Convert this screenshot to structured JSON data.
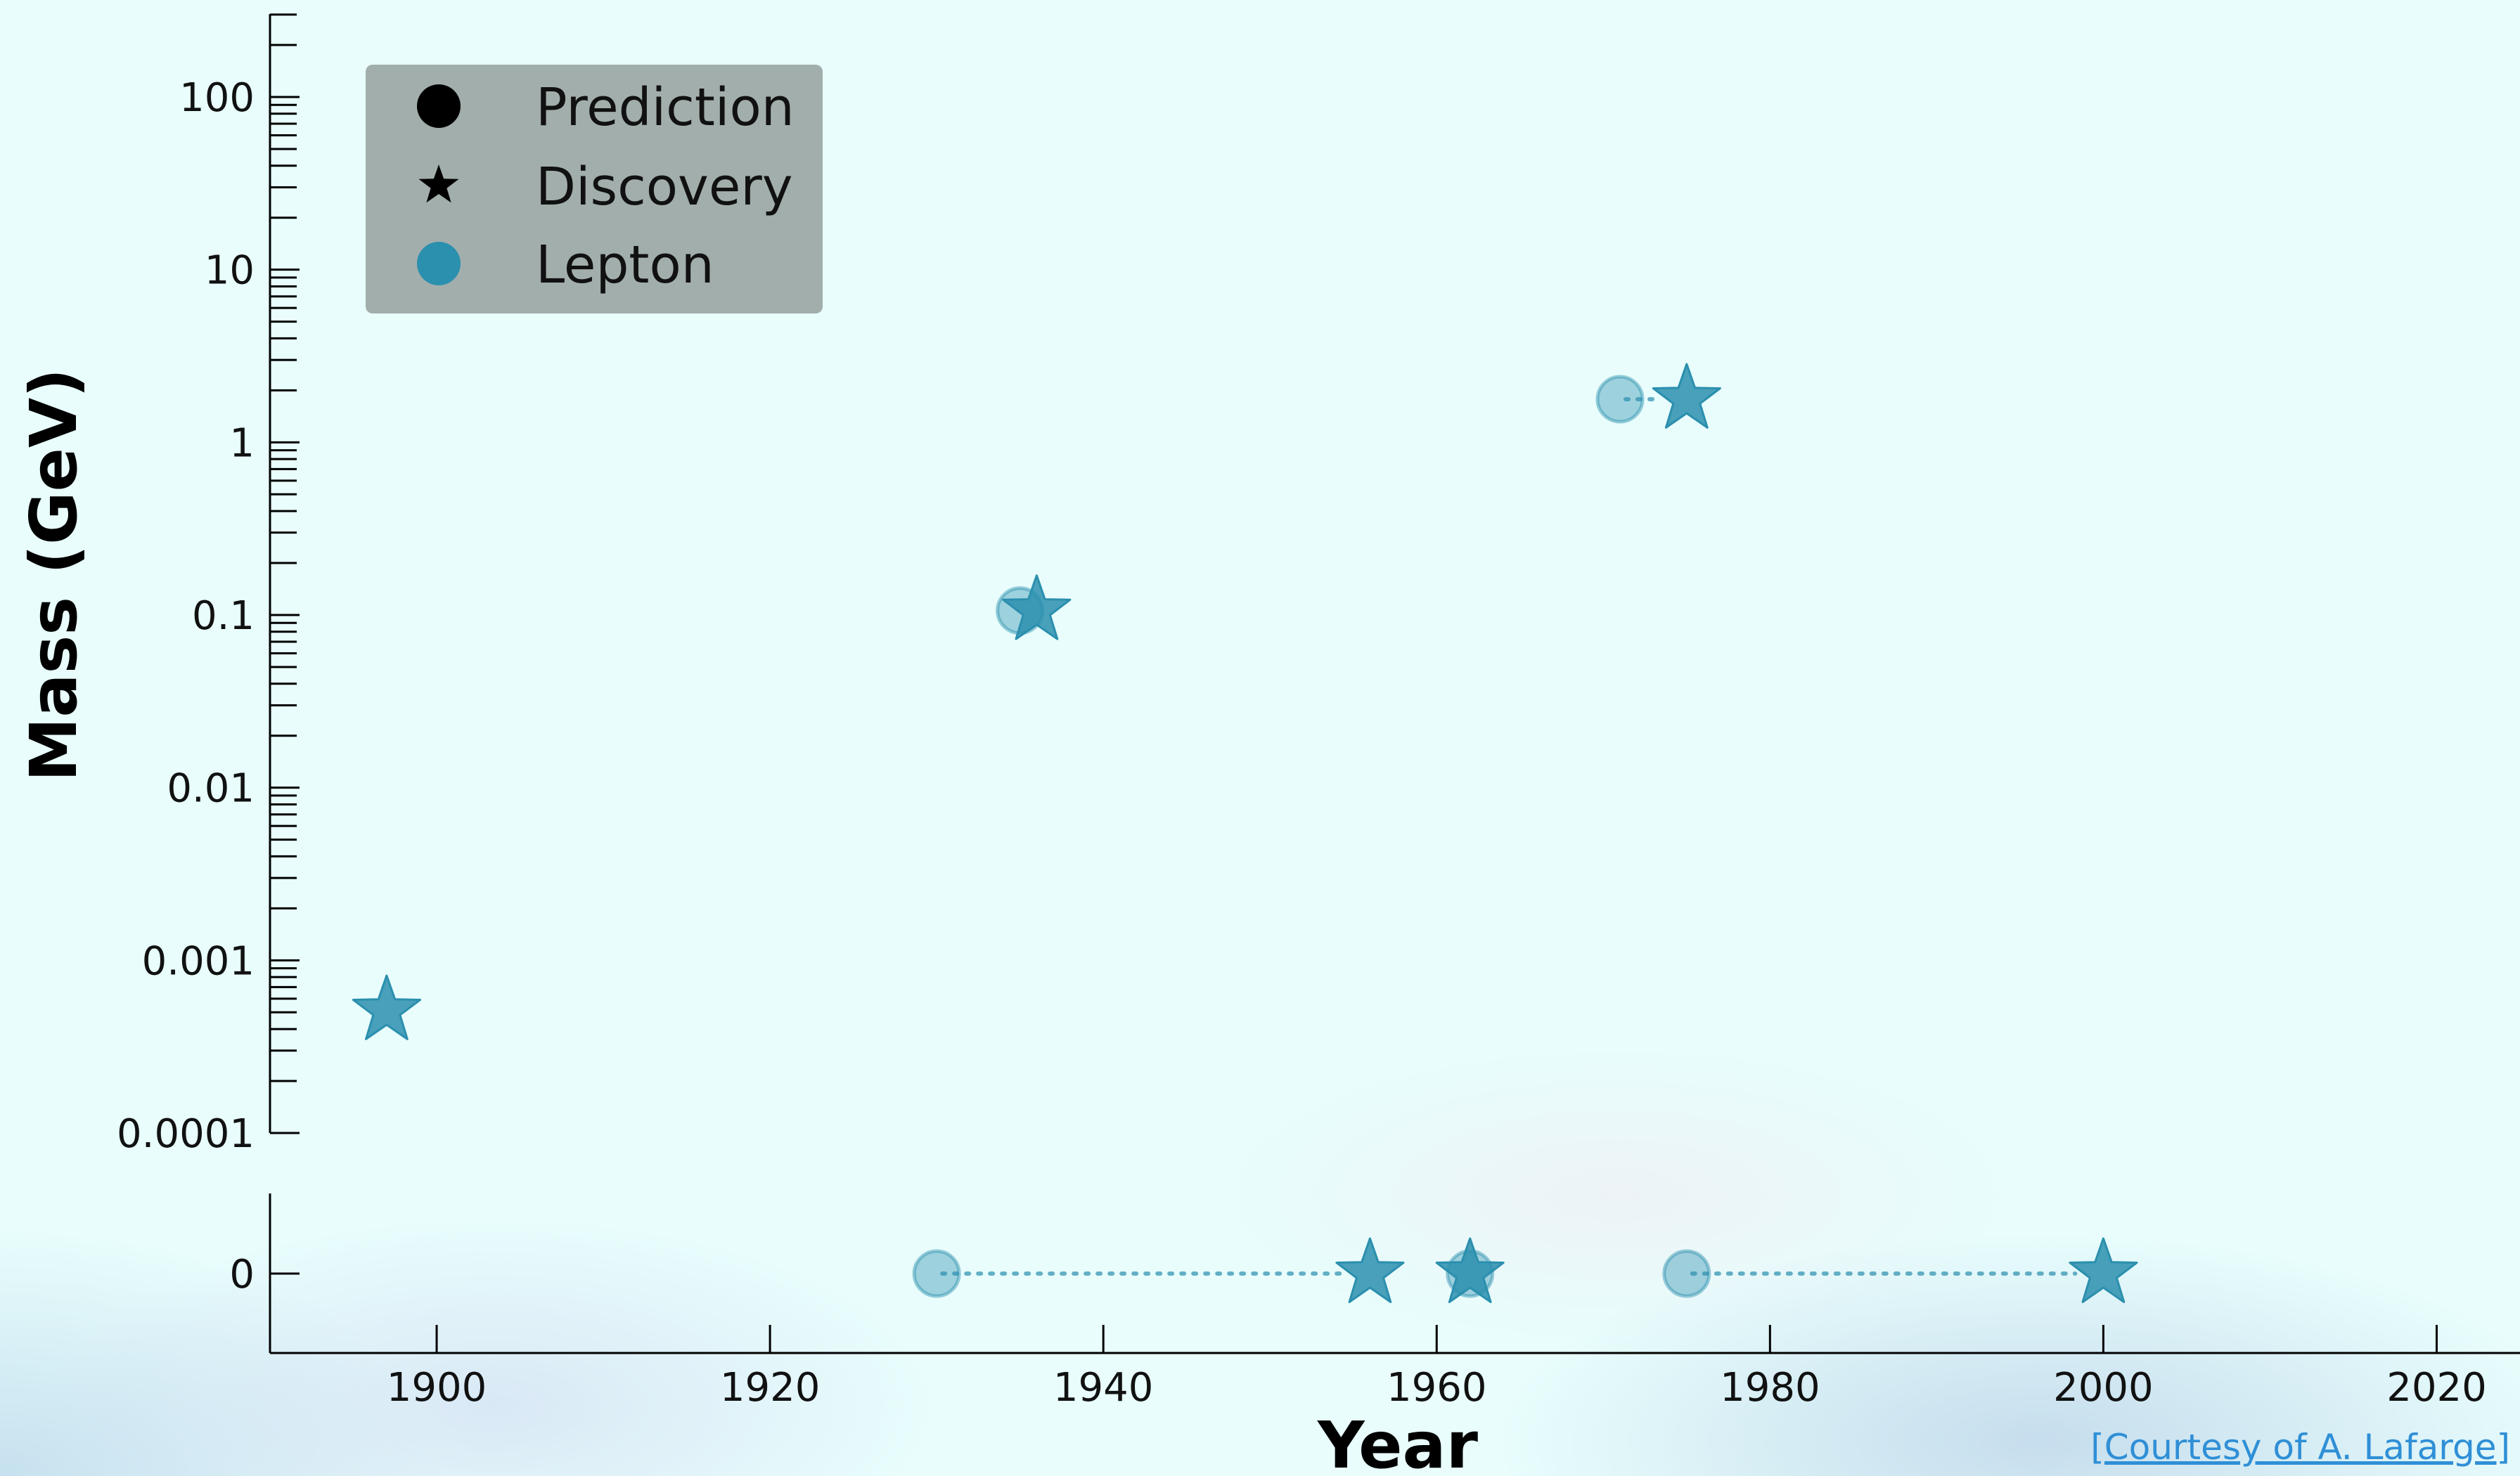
{
  "chart_data": {
    "type": "scatter",
    "xlabel": "Year",
    "ylabel": "Mass (GeV)",
    "xlim": [
      1890,
      2025
    ],
    "ylim": [
      0.0001,
      300
    ],
    "yscale": "log",
    "xticks": [
      1900,
      1920,
      1940,
      1960,
      1980,
      2000,
      2020
    ],
    "yticks": [
      {
        "value": 100,
        "label": "100"
      },
      {
        "value": 10,
        "label": "10"
      },
      {
        "value": 1,
        "label": "1"
      },
      {
        "value": 0.1,
        "label": "0.1"
      },
      {
        "value": 0.01,
        "label": "0.01"
      },
      {
        "value": 0.001,
        "label": "0.001"
      },
      {
        "value": 0.0001,
        "label": "0.0001"
      }
    ],
    "zero_panel": {
      "ytick_label": "0",
      "y_value": 0
    },
    "legend": {
      "placement": "upper-left",
      "entries": [
        {
          "label": "Prediction",
          "marker": "circle",
          "color": "#000000"
        },
        {
          "label": "Discovery",
          "marker": "star",
          "color": "#000000"
        },
        {
          "label": "Lepton",
          "marker": "circle",
          "color": "#2b8fae"
        }
      ]
    },
    "colors": {
      "lepton": "#2b8fae",
      "prediction_fill": "#2b8fae",
      "legend_bg": "#a2aeac"
    },
    "points": [
      {
        "mass": 0.000511,
        "predicted": null,
        "discovered": 1897
      },
      {
        "mass": 0.106,
        "predicted": 1935,
        "discovered": 1936
      },
      {
        "mass": 1.777,
        "predicted": 1971,
        "discovered": 1975
      },
      {
        "mass": 0,
        "predicted": 1930,
        "discovered": 1956
      },
      {
        "mass": 0,
        "predicted": 1962,
        "discovered": 1962
      },
      {
        "mass": 0,
        "predicted": 1975,
        "discovered": 2000
      }
    ]
  },
  "credit": "[Courtesy of A. Lafarge]"
}
